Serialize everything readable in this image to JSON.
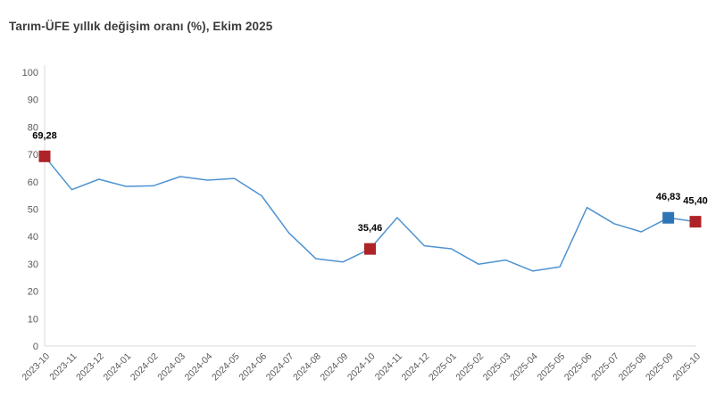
{
  "chart": {
    "title": "Tarım-ÜFE yıllık değişim oranı (%), Ekim 2025"
  },
  "chart_data": {
    "type": "line",
    "title": "Tarım-ÜFE yıllık değişim oranı (%), Ekim 2025",
    "xlabel": "",
    "ylabel": "",
    "ylim": [
      0,
      100
    ],
    "y_ticks": [
      0,
      10,
      20,
      30,
      40,
      50,
      60,
      70,
      80,
      90,
      100
    ],
    "grid": false,
    "legend": "none",
    "line_color": "#4E93D1",
    "axis_line_color": "#D9D9D9",
    "tick_label_color": "#595959",
    "data_label_color": "#000000",
    "categories": [
      "2023-10",
      "2023-11",
      "2023-12",
      "2024-01",
      "2024-02",
      "2024-03",
      "2024-04",
      "2024-05",
      "2024-06",
      "2024-07",
      "2024-08",
      "2024-09",
      "2024-10",
      "2024-11",
      "2024-12",
      "2025-01",
      "2025-02",
      "2025-03",
      "2025-04",
      "2025-05",
      "2025-06",
      "2025-07",
      "2025-08",
      "2025-09",
      "2025-10"
    ],
    "values": [
      69.28,
      57.1,
      60.9,
      58.3,
      58.5,
      61.9,
      60.6,
      61.2,
      54.9,
      41.4,
      31.9,
      30.7,
      35.46,
      46.9,
      36.6,
      35.5,
      29.9,
      31.4,
      27.4,
      28.9,
      50.6,
      44.7,
      41.7,
      46.83,
      45.4
    ],
    "markers": [
      {
        "index": 0,
        "category": "2023-10",
        "value": 69.28,
        "label": "69,28",
        "color": "#AE2328"
      },
      {
        "index": 12,
        "category": "2024-10",
        "value": 35.46,
        "label": "35,46",
        "color": "#AE2328"
      },
      {
        "index": 23,
        "category": "2025-09",
        "value": 46.83,
        "label": "46,83",
        "color": "#2E75B6"
      },
      {
        "index": 24,
        "category": "2025-10",
        "value": 45.4,
        "label": "45,40",
        "color": "#AE2328"
      }
    ]
  }
}
